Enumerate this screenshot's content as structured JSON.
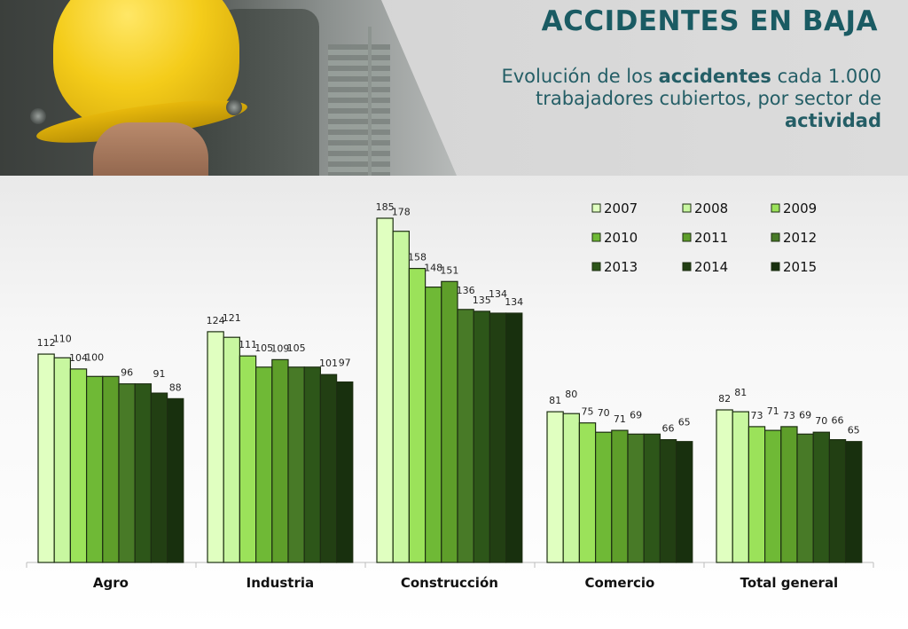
{
  "title": "ACCIDENTES EN BAJA",
  "subtitle": {
    "part1": "Evolución de los ",
    "bold1": "accidentes",
    "part2": " cada 1.000 trabajadores cubiertos, por sector de ",
    "bold2": "actividad"
  },
  "photo": {
    "description_icon": "worker-helmet-photo-icon"
  },
  "chart_data": {
    "type": "bar",
    "categories": [
      "Agro",
      "Industria",
      "Construcción",
      "Comercio",
      "Total general"
    ],
    "series": [
      {
        "name": "2007",
        "color": "#e0ffc0",
        "values": [
          112,
          124,
          185,
          81,
          82
        ]
      },
      {
        "name": "2008",
        "color": "#c8f7a0",
        "values": [
          110,
          121,
          178,
          80,
          81
        ]
      },
      {
        "name": "2009",
        "color": "#9be25a",
        "values": [
          104,
          111,
          158,
          75,
          73
        ]
      },
      {
        "name": "2010",
        "color": "#6fb936",
        "values": [
          100,
          105,
          148,
          70,
          71
        ]
      },
      {
        "name": "2011",
        "color": "#5e9e2a",
        "values": [
          100,
          109,
          151,
          71,
          73
        ]
      },
      {
        "name": "2012",
        "color": "#487a27",
        "values": [
          96,
          105,
          136,
          69,
          69
        ]
      },
      {
        "name": "2013",
        "color": "#2d5619",
        "values": [
          96,
          105,
          135,
          69,
          70
        ]
      },
      {
        "name": "2014",
        "color": "#223f13",
        "values": [
          91,
          101,
          134,
          66,
          66
        ]
      },
      {
        "name": "2015",
        "color": "#18300e",
        "values": [
          88,
          97,
          134,
          65,
          65
        ]
      }
    ],
    "ylim": [
      0,
      200
    ],
    "grid": false,
    "legend": "top-right",
    "xlabel": "",
    "ylabel": ""
  }
}
